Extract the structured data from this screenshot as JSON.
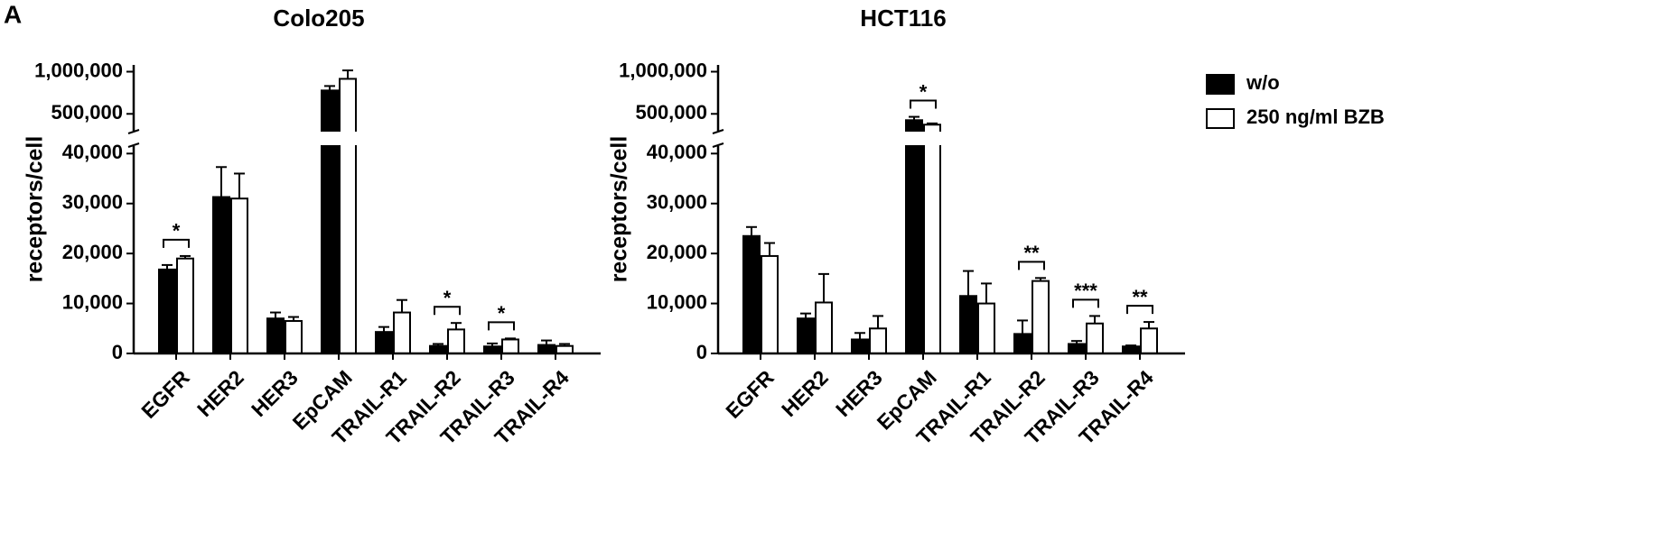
{
  "panel_label": "A",
  "chart_data": [
    {
      "type": "bar",
      "title": "Colo205",
      "y_label": "receptors/cell",
      "categories": [
        "EGFR",
        "HER2",
        "HER3",
        "EpCAM",
        "TRAIL-R1",
        "TRAIL-R2",
        "TRAIL-R3",
        "TRAIL-R4"
      ],
      "series": [
        {
          "name": "w/o",
          "color": "#000000",
          "values": [
            16800,
            31300,
            7000,
            777000,
            4300,
            1500,
            1400,
            1700
          ],
          "errors": [
            900,
            6000,
            1200,
            53000,
            1000,
            400,
            600,
            900
          ]
        },
        {
          "name": "250 ng/ml BZB",
          "color": "#ffffff",
          "values": [
            19000,
            31000,
            6500,
            915000,
            8200,
            4800,
            2800,
            1500
          ],
          "errors": [
            500,
            5000,
            800,
            100000,
            2500,
            1300,
            200,
            400
          ]
        }
      ],
      "ylim": [
        0,
        1080000
      ],
      "axis_break": [
        41500,
        300000
      ],
      "yticks": [
        0,
        {
          "value": 10000,
          "label": "10,000"
        },
        {
          "value": 20000,
          "label": "20,000"
        },
        {
          "value": 30000,
          "label": "30,000"
        },
        {
          "value": 40000,
          "label": "40,000"
        },
        {
          "value": 500000,
          "label": "500,000"
        },
        {
          "value": 1000000,
          "label": "1,000,000"
        }
      ],
      "annotations": [
        {
          "category": "EGFR",
          "text": "*"
        },
        {
          "category": "TRAIL-R2",
          "text": "*"
        },
        {
          "category": "TRAIL-R3",
          "text": "*"
        }
      ],
      "legend": false
    },
    {
      "type": "bar",
      "title": "HCT116",
      "y_label": "receptors/cell",
      "categories": [
        "EGFR",
        "HER2",
        "HER3",
        "EpCAM",
        "TRAIL-R1",
        "TRAIL-R2",
        "TRAIL-R3",
        "TRAIL-R4"
      ],
      "series": [
        {
          "name": "w/o",
          "color": "#000000",
          "values": [
            23500,
            7000,
            2800,
            425000,
            11500,
            3900,
            1900,
            1400
          ],
          "errors": [
            1800,
            1000,
            1300,
            40000,
            5000,
            2700,
            600,
            200
          ]
        },
        {
          "name": "250 ng/ml BZB",
          "color": "#ffffff",
          "values": [
            19500,
            10200,
            5000,
            372000,
            10000,
            14500,
            6000,
            5000
          ],
          "errors": [
            2600,
            5700,
            2500,
            15000,
            4000,
            600,
            1500,
            1300
          ]
        }
      ],
      "ylim": [
        0,
        1080000
      ],
      "axis_break": [
        41500,
        300000
      ],
      "yticks": [
        0,
        {
          "value": 10000,
          "label": "10,000"
        },
        {
          "value": 20000,
          "label": "20,000"
        },
        {
          "value": 30000,
          "label": "30,000"
        },
        {
          "value": 40000,
          "label": "40,000"
        },
        {
          "value": 500000,
          "label": "500,000"
        },
        {
          "value": 1000000,
          "label": "1,000,000"
        }
      ],
      "annotations": [
        {
          "category": "EpCAM",
          "text": "*"
        },
        {
          "category": "TRAIL-R2",
          "text": "**"
        },
        {
          "category": "TRAIL-R3",
          "text": "***"
        },
        {
          "category": "TRAIL-R4",
          "text": "**"
        }
      ],
      "legend": "right"
    }
  ]
}
